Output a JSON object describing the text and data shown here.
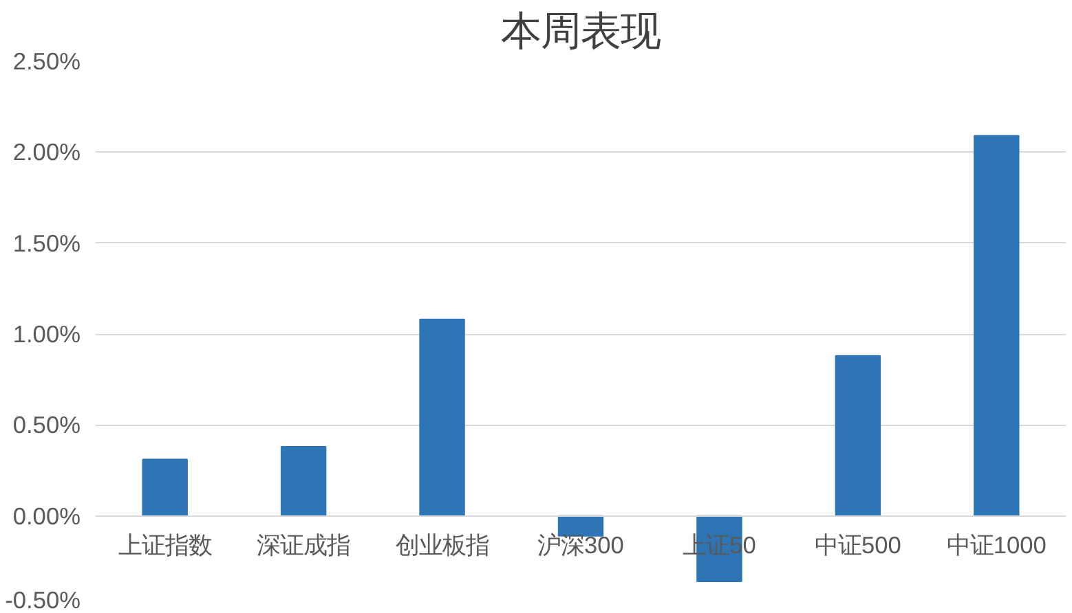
{
  "chart_data": {
    "type": "bar",
    "title": "本周表现",
    "categories": [
      "上证指数",
      "深证成指",
      "创业板指",
      "沪深300",
      "上证50",
      "中证500",
      "中证1000"
    ],
    "values": [
      0.31,
      0.38,
      1.08,
      -0.11,
      -0.36,
      0.88,
      2.09
    ],
    "color": "#2e75b6",
    "ylim": [
      -0.5,
      2.5
    ],
    "yticks": [
      {
        "value": -0.5,
        "label": "-0.50%"
      },
      {
        "value": 0,
        "label": "0.00%"
      },
      {
        "value": 0.5,
        "label": "0.50%"
      },
      {
        "value": 1,
        "label": "1.00%"
      },
      {
        "value": 1.5,
        "label": "1.50%"
      },
      {
        "value": 2,
        "label": "2.00%"
      },
      {
        "value": 2.5,
        "label": "2.50%"
      }
    ],
    "grid": "y"
  }
}
